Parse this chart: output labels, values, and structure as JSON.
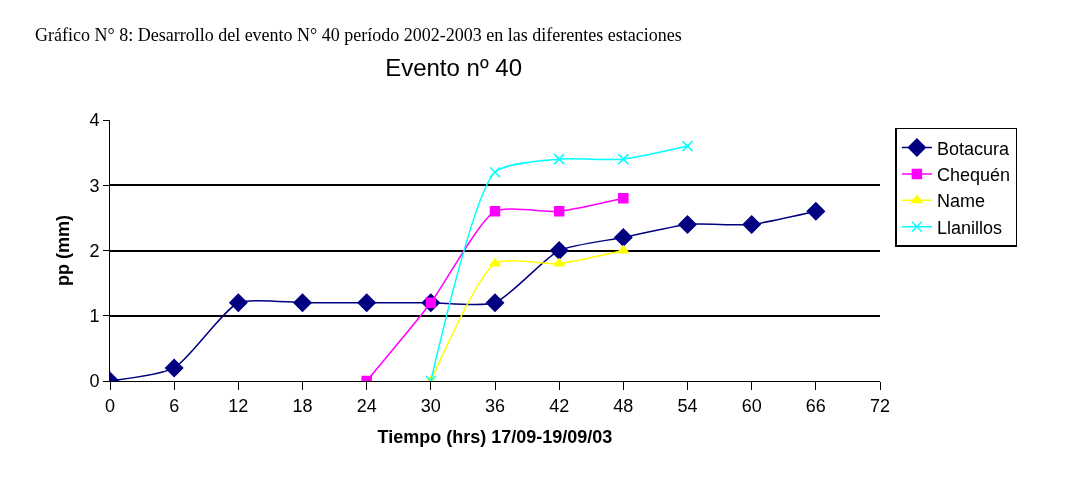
{
  "chart_data": {
    "type": "line",
    "title": "Evento nº 40",
    "xlabel": "Tiempo (hrs) 17/09-19/09/03",
    "ylabel": "pp (mm)",
    "annotations": [
      "Gráfico N° 8: Desarrollo del evento N° 40 período 2002-2003 en las diferentes estaciones"
    ],
    "xlim": [
      0,
      72
    ],
    "xticks": [
      0,
      6,
      12,
      18,
      24,
      30,
      36,
      42,
      48,
      54,
      60,
      66,
      72
    ],
    "ylim": [
      0,
      4
    ],
    "yticks": [
      0,
      1,
      2,
      3,
      4
    ],
    "grid": "y",
    "legend": "right",
    "series": [
      {
        "name": "Botacura",
        "color": "#000080",
        "marker": "diamond",
        "x": [
          0,
          6,
          12,
          18,
          24,
          30,
          36,
          42,
          48,
          54,
          60,
          66
        ],
        "values": [
          0,
          0.2,
          1.2,
          1.2,
          1.2,
          1.2,
          1.2,
          2.0,
          2.2,
          2.4,
          2.4,
          2.6
        ]
      },
      {
        "name": "Chequén",
        "color": "#ff00ff",
        "marker": "square",
        "x": [
          24,
          30,
          36,
          42,
          48
        ],
        "values": [
          0,
          1.2,
          2.6,
          2.6,
          2.8
        ]
      },
      {
        "name": "Name",
        "color": "#ffff00",
        "marker": "triangle",
        "x": [
          30,
          36,
          42,
          48
        ],
        "values": [
          0,
          1.8,
          1.8,
          2.0
        ]
      },
      {
        "name": "Llanillos",
        "color": "#00ffff",
        "marker": "cross",
        "x": [
          30,
          36,
          42,
          48,
          54
        ],
        "values": [
          0,
          3.2,
          3.4,
          3.4,
          3.6
        ]
      }
    ]
  }
}
